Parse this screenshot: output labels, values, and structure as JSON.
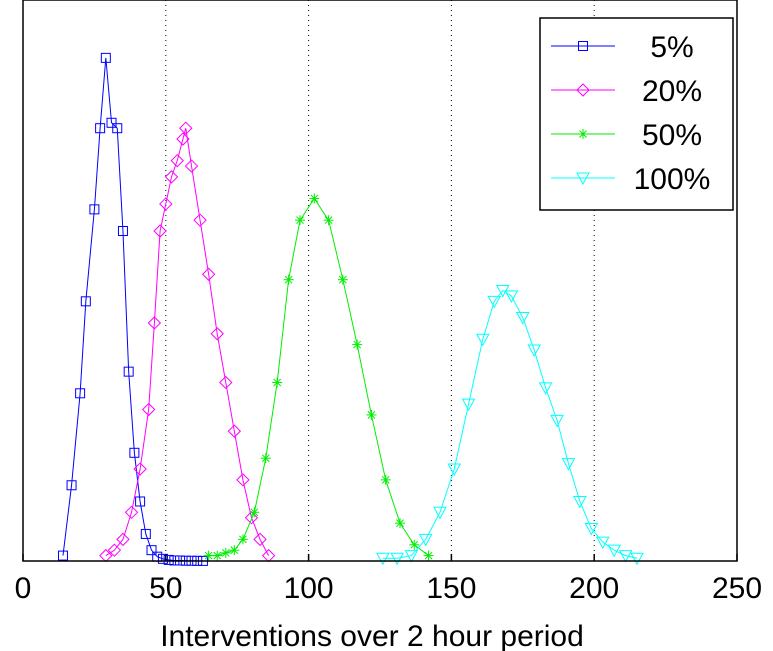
{
  "chart_data": {
    "type": "line",
    "xlabel": "Interventions over 2 hour period",
    "ylabel": "",
    "xlim": [
      0,
      250
    ],
    "xticks": [
      0,
      50,
      100,
      150,
      200,
      250
    ],
    "xtick_labels": [
      "0",
      "50",
      "100",
      "150",
      "200",
      "250"
    ],
    "ylim": [
      0,
      1
    ],
    "grid": "vertical dotted lines at x = 50, 100, 150, 200",
    "legend_position": "top-right",
    "series": [
      {
        "name": "5%",
        "color": "#0000ff",
        "marker": "square",
        "x": [
          14,
          17,
          20,
          22,
          25,
          27,
          29,
          31,
          33,
          35,
          37,
          39,
          41,
          43,
          45,
          47,
          49,
          51,
          53,
          55,
          57,
          59,
          61,
          63
        ],
        "y": [
          0.01,
          0.14,
          0.31,
          0.48,
          0.65,
          0.8,
          0.93,
          0.81,
          0.8,
          0.61,
          0.35,
          0.2,
          0.11,
          0.05,
          0.02,
          0.008,
          0.004,
          0.002,
          0.001,
          0.001,
          0.0005,
          0.0005,
          0.0003,
          0.0002
        ]
      },
      {
        "name": "20%",
        "color": "#ff00ff",
        "marker": "diamond",
        "x": [
          29,
          32,
          35,
          38,
          41,
          44,
          46,
          48,
          50,
          52,
          54,
          56,
          57,
          59,
          62,
          65,
          68,
          71,
          74,
          77,
          80,
          83,
          86
        ],
        "y": [
          0.01,
          0.02,
          0.04,
          0.09,
          0.17,
          0.28,
          0.44,
          0.61,
          0.66,
          0.71,
          0.74,
          0.78,
          0.8,
          0.73,
          0.63,
          0.53,
          0.42,
          0.33,
          0.24,
          0.15,
          0.08,
          0.04,
          0.01
        ]
      },
      {
        "name": "50%",
        "color": "#00ee00",
        "marker": "star",
        "x": [
          65,
          68,
          71,
          74,
          77,
          81,
          85,
          89,
          93,
          97,
          102,
          107,
          112,
          117,
          122,
          127,
          132,
          137,
          142
        ],
        "y": [
          0.01,
          0.01,
          0.015,
          0.02,
          0.04,
          0.09,
          0.19,
          0.33,
          0.52,
          0.63,
          0.67,
          0.63,
          0.52,
          0.4,
          0.27,
          0.15,
          0.07,
          0.03,
          0.01
        ]
      },
      {
        "name": "100%",
        "color": "#00ffff",
        "marker": "triangle-down",
        "x": [
          126,
          131,
          136,
          141,
          146,
          151,
          156,
          161,
          165,
          168,
          171,
          175,
          179,
          183,
          187,
          191,
          195,
          199,
          203,
          207,
          211,
          215
        ],
        "y": [
          0.005,
          0.005,
          0.01,
          0.04,
          0.09,
          0.17,
          0.29,
          0.41,
          0.48,
          0.5,
          0.49,
          0.45,
          0.39,
          0.32,
          0.26,
          0.18,
          0.11,
          0.06,
          0.035,
          0.02,
          0.01,
          0.005
        ]
      }
    ]
  }
}
